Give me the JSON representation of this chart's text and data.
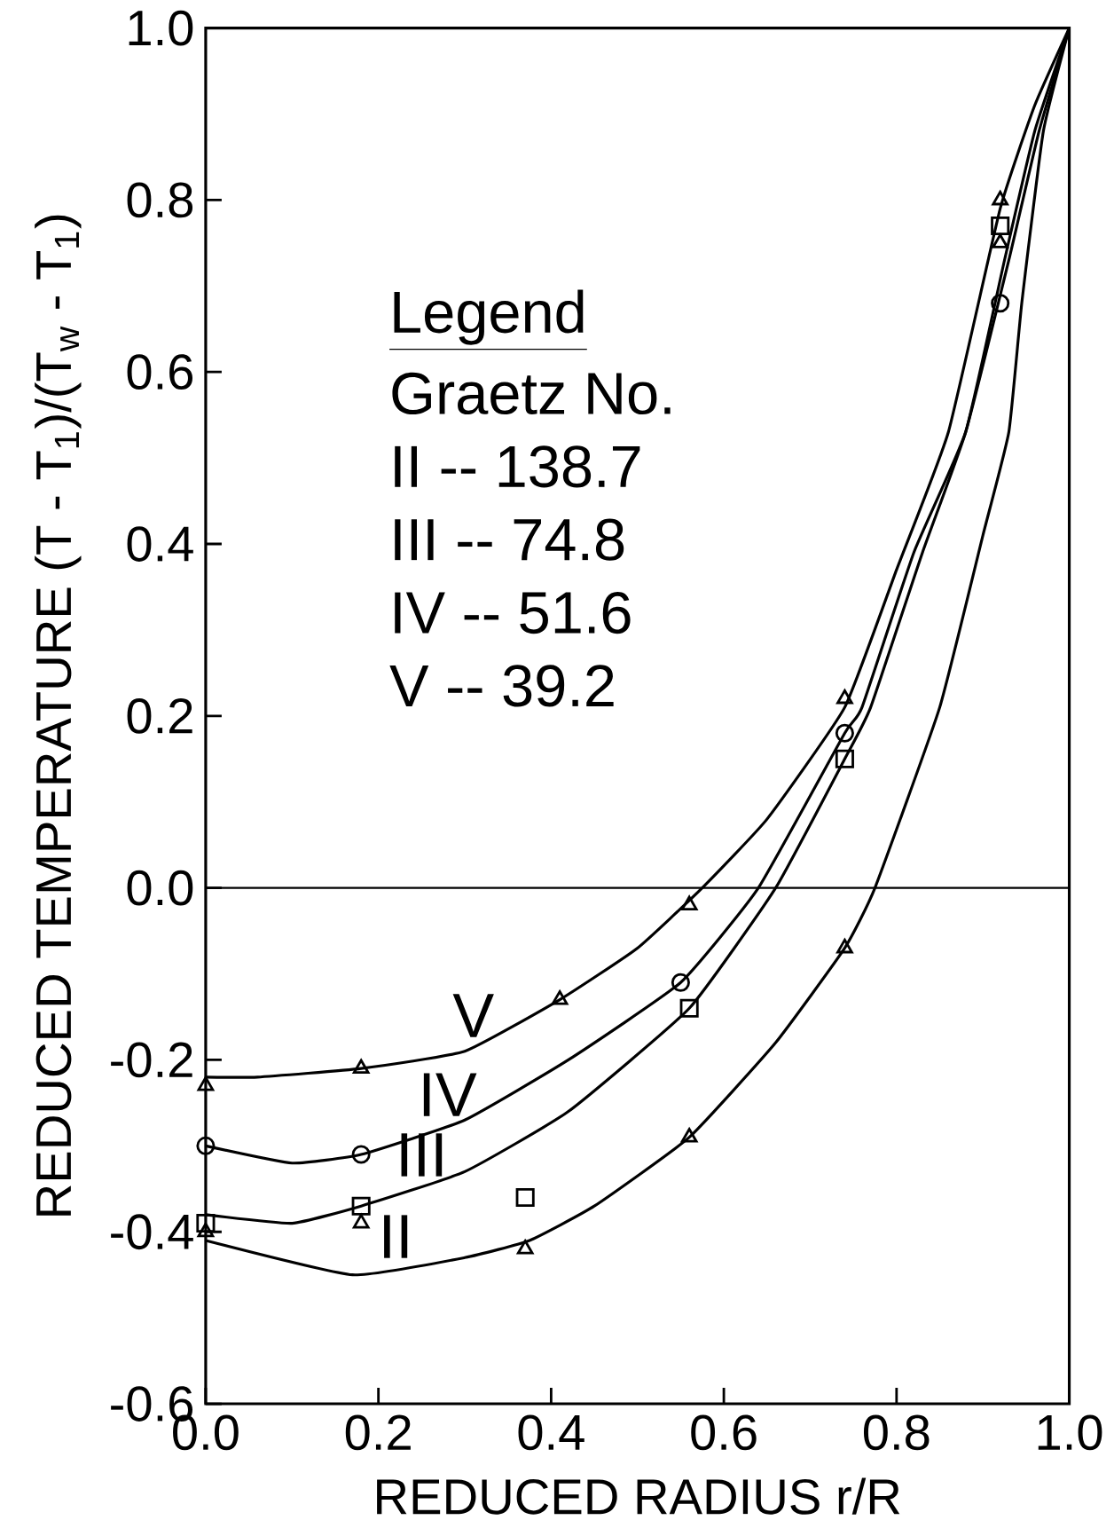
{
  "chart_data": {
    "type": "line",
    "xlabel": "REDUCED RADIUS  r/R",
    "ylabel": "REDUCED TEMPERATURE  (T - T$_{1}$)/(T$_{w}$ - T$_{1}$)",
    "xlim": [
      0,
      1
    ],
    "ylim": [
      -0.6,
      1
    ],
    "xticks": [
      {
        "value": 0,
        "label": "0.0"
      },
      0.2,
      0.4,
      0.6,
      0.8,
      {
        "value": 1,
        "label": "1.0"
      }
    ],
    "yticks": [
      -0.6,
      -0.4,
      -0.2,
      {
        "value": 0,
        "label": "0.0"
      },
      0.2,
      0.4,
      0.6,
      0.8,
      {
        "value": 1,
        "label": "1.0"
      }
    ],
    "grid": false,
    "marker": "none",
    "ref_lines": [
      {
        "axis": "y",
        "value": 0,
        "color": "#000000"
      }
    ],
    "annotations": [
      "Legend",
      "Graetz No.",
      "II -- 138.7",
      "III -- 74.8",
      "IV -- 51.6",
      "V -- 39.2"
    ],
    "series": [
      {
        "name": "V",
        "color": "#000000",
        "x": [
          0,
          0.06,
          0.18,
          0.3,
          0.41,
          0.5,
          0.575,
          0.65,
          0.74,
          0.8,
          0.86,
          0.92,
          0.96,
          1
        ],
        "values": [
          -0.22,
          -0.22,
          -0.21,
          -0.19,
          -0.13,
          -0.07,
          0,
          0.08,
          0.21,
          0.37,
          0.53,
          0.79,
          0.91,
          1
        ]
      },
      {
        "name": "IV",
        "color": "#000000",
        "x": [
          0,
          0.1,
          0.18,
          0.3,
          0.42,
          0.55,
          0.64,
          0.74,
          0.76,
          0.82,
          0.88,
          0.925,
          0.96,
          1
        ],
        "values": [
          -0.3,
          -0.32,
          -0.31,
          -0.27,
          -0.2,
          -0.11,
          0,
          0.18,
          0.21,
          0.39,
          0.53,
          0.73,
          0.88,
          1
        ]
      },
      {
        "name": "III",
        "color": "#000000",
        "x": [
          0,
          0.1,
          0.18,
          0.3,
          0.42,
          0.56,
          0.66,
          0.74,
          0.77,
          0.83,
          0.88,
          0.93,
          0.965,
          1
        ],
        "values": [
          -0.38,
          -0.39,
          -0.37,
          -0.33,
          -0.26,
          -0.14,
          0,
          0.15,
          0.21,
          0.39,
          0.53,
          0.73,
          0.88,
          1
        ]
      },
      {
        "name": "II",
        "color": "#000000",
        "x": [
          0,
          0.17,
          0.3,
          0.375,
          0.45,
          0.56,
          0.66,
          0.74,
          0.775,
          0.85,
          0.9,
          0.93,
          0.945,
          0.97,
          1
        ],
        "values": [
          -0.41,
          -0.45,
          -0.43,
          -0.41,
          -0.37,
          -0.29,
          -0.18,
          -0.07,
          0,
          0.21,
          0.41,
          0.53,
          0.68,
          0.88,
          1
        ]
      },
      {
        "type": "scatter",
        "marker": "triangle",
        "color": "#000000",
        "x": [
          0,
          0.18,
          0.41,
          0.56,
          0.74,
          0.92
        ],
        "values": [
          -0.23,
          -0.21,
          -0.13,
          -0.02,
          0.22,
          0.8
        ]
      },
      {
        "type": "scatter",
        "marker": "circle",
        "color": "#000000",
        "x": [
          0,
          0.18,
          0.55,
          0.74,
          0.92
        ],
        "values": [
          -0.3,
          -0.31,
          -0.11,
          0.18,
          0.68
        ]
      },
      {
        "type": "scatter",
        "marker": "square",
        "color": "#000000",
        "x": [
          0,
          0.18,
          0.37,
          0.56,
          0.74,
          0.92
        ],
        "values": [
          -0.39,
          -0.37,
          -0.36,
          -0.14,
          0.15,
          0.77
        ]
      },
      {
        "type": "scatter",
        "marker": "triangle",
        "color": "#000000",
        "x": [
          0,
          0.18,
          0.37,
          0.56,
          0.74,
          0.92
        ],
        "values": [
          -0.4,
          -0.39,
          -0.42,
          -0.29,
          -0.07,
          0.75
        ]
      }
    ]
  }
}
